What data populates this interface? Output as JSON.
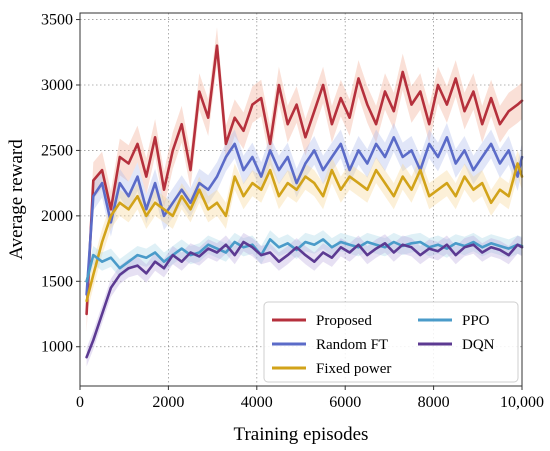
{
  "chart_data": {
    "type": "line",
    "title": "",
    "xlabel": "Training episodes",
    "ylabel": "Average reward",
    "xlim": [
      0,
      10000
    ],
    "ylim": [
      700,
      3550
    ],
    "xticks": [
      0,
      2000,
      4000,
      6000,
      8000,
      10000
    ],
    "xtick_labels": [
      "0",
      "2000",
      "4000",
      "6000",
      "8000",
      "10,000"
    ],
    "yticks": [
      1000,
      1500,
      2000,
      2500,
      3000,
      3500
    ],
    "ytick_labels": [
      "1000",
      "1500",
      "2000",
      "2500",
      "3000",
      "3500"
    ],
    "grid": true,
    "legend_position": "bottom-right",
    "legend_columns": 2,
    "band_note": "shaded confidence band around each series",
    "series": [
      {
        "name": "Proposed",
        "color": "#b5303c",
        "band_color": "#f0a78d",
        "x": [
          150,
          300,
          500,
          700,
          900,
          1100,
          1300,
          1500,
          1700,
          1900,
          2100,
          2300,
          2500,
          2700,
          2900,
          3100,
          3300,
          3500,
          3700,
          3900,
          4100,
          4300,
          4500,
          4700,
          4900,
          5100,
          5300,
          5500,
          5700,
          5900,
          6100,
          6300,
          6500,
          6700,
          6900,
          7100,
          7300,
          7500,
          7700,
          7900,
          8100,
          8300,
          8500,
          8700,
          8900,
          9100,
          9300,
          9500,
          9700,
          9900,
          10000
        ],
        "y": [
          1250,
          2270,
          2350,
          2050,
          2450,
          2400,
          2550,
          2300,
          2600,
          2200,
          2500,
          2700,
          2350,
          2950,
          2750,
          3300,
          2550,
          2750,
          2650,
          2850,
          2900,
          2550,
          3000,
          2700,
          2850,
          2600,
          2800,
          3000,
          2700,
          2900,
          2750,
          3050,
          2850,
          2700,
          2950,
          2800,
          3100,
          2850,
          2950,
          2700,
          3000,
          2850,
          3050,
          2800,
          2950,
          2700,
          2900,
          2700,
          2800,
          2850,
          2880
        ],
        "band_halfwidth": 140
      },
      {
        "name": "Random FT",
        "color": "#5b6bc8",
        "band_color": "#a9b6ec",
        "x": [
          150,
          300,
          500,
          700,
          900,
          1100,
          1300,
          1500,
          1700,
          1900,
          2100,
          2300,
          2500,
          2700,
          2900,
          3100,
          3300,
          3500,
          3700,
          3900,
          4100,
          4300,
          4500,
          4700,
          4900,
          5100,
          5300,
          5500,
          5700,
          5900,
          6100,
          6300,
          6500,
          6700,
          6900,
          7100,
          7300,
          7500,
          7700,
          7900,
          8100,
          8300,
          8500,
          8700,
          8900,
          9100,
          9300,
          9500,
          9700,
          9900,
          10000
        ],
        "y": [
          1400,
          2150,
          2250,
          1950,
          2250,
          2150,
          2300,
          2050,
          2250,
          2000,
          2100,
          2200,
          2100,
          2250,
          2200,
          2300,
          2450,
          2550,
          2350,
          2450,
          2300,
          2500,
          2350,
          2450,
          2250,
          2400,
          2500,
          2350,
          2450,
          2550,
          2350,
          2500,
          2400,
          2550,
          2450,
          2600,
          2450,
          2500,
          2350,
          2550,
          2450,
          2600,
          2400,
          2500,
          2350,
          2450,
          2550,
          2400,
          2500,
          2300,
          2450
        ],
        "band_halfwidth": 110
      },
      {
        "name": "Fixed power",
        "color": "#d2a319",
        "band_color": "#f5d38e",
        "x": [
          150,
          300,
          500,
          700,
          900,
          1100,
          1300,
          1500,
          1700,
          1900,
          2100,
          2300,
          2500,
          2700,
          2900,
          3100,
          3300,
          3500,
          3700,
          3900,
          4100,
          4300,
          4500,
          4700,
          4900,
          5100,
          5300,
          5500,
          5700,
          5900,
          6100,
          6300,
          6500,
          6700,
          6900,
          7100,
          7300,
          7500,
          7700,
          7900,
          8100,
          8300,
          8500,
          8700,
          8900,
          9100,
          9300,
          9500,
          9700,
          9900,
          10000
        ],
        "y": [
          1350,
          1550,
          1800,
          2000,
          2100,
          2050,
          2150,
          2000,
          2100,
          2050,
          2000,
          2150,
          2050,
          2200,
          2050,
          2100,
          2000,
          2300,
          2150,
          2250,
          2200,
          2350,
          2150,
          2250,
          2200,
          2300,
          2250,
          2150,
          2350,
          2200,
          2300,
          2250,
          2200,
          2350,
          2250,
          2150,
          2300,
          2200,
          2350,
          2150,
          2200,
          2250,
          2150,
          2300,
          2200,
          2250,
          2100,
          2200,
          2150,
          2400,
          2300
        ],
        "band_halfwidth": 100
      },
      {
        "name": "PPO",
        "color": "#4a9bc9",
        "band_color": "#a3d3e6",
        "x": [
          150,
          300,
          500,
          700,
          900,
          1100,
          1300,
          1500,
          1700,
          1900,
          2100,
          2300,
          2500,
          2700,
          2900,
          3100,
          3300,
          3500,
          3700,
          3900,
          4100,
          4300,
          4500,
          4700,
          4900,
          5100,
          5300,
          5500,
          5700,
          5900,
          6100,
          6300,
          6500,
          6700,
          6900,
          7100,
          7300,
          7500,
          7700,
          7900,
          8100,
          8300,
          8500,
          8700,
          8900,
          9100,
          9300,
          9500,
          9700,
          9900,
          10000
        ],
        "y": [
          1500,
          1700,
          1650,
          1680,
          1600,
          1650,
          1700,
          1680,
          1720,
          1650,
          1700,
          1750,
          1700,
          1720,
          1780,
          1750,
          1720,
          1800,
          1760,
          1780,
          1700,
          1820,
          1760,
          1790,
          1740,
          1800,
          1780,
          1820,
          1760,
          1800,
          1780,
          1760,
          1800,
          1780,
          1760,
          1800,
          1770,
          1790,
          1800,
          1760,
          1780,
          1750,
          1790,
          1770,
          1800,
          1760,
          1790,
          1770,
          1750,
          1780,
          1770
        ],
        "band_halfwidth": 70
      },
      {
        "name": "DQN",
        "color": "#5c3a92",
        "band_color": "#b8a6dc",
        "x": [
          150,
          300,
          500,
          700,
          900,
          1100,
          1300,
          1500,
          1700,
          1900,
          2100,
          2300,
          2500,
          2700,
          2900,
          3100,
          3300,
          3500,
          3700,
          3900,
          4100,
          4300,
          4500,
          4700,
          4900,
          5100,
          5300,
          5500,
          5700,
          5900,
          6100,
          6300,
          6500,
          6700,
          6900,
          7100,
          7300,
          7500,
          7700,
          7900,
          8100,
          8300,
          8500,
          8700,
          8900,
          9100,
          9300,
          9500,
          9700,
          9900,
          10000
        ],
        "y": [
          920,
          1050,
          1250,
          1450,
          1550,
          1600,
          1620,
          1560,
          1650,
          1600,
          1700,
          1650,
          1720,
          1690,
          1750,
          1720,
          1780,
          1700,
          1800,
          1760,
          1700,
          1720,
          1650,
          1700,
          1760,
          1700,
          1650,
          1720,
          1680,
          1760,
          1720,
          1780,
          1700,
          1750,
          1790,
          1720,
          1780,
          1760,
          1700,
          1750,
          1730,
          1780,
          1700,
          1760,
          1780,
          1720,
          1760,
          1740,
          1700,
          1780,
          1760
        ],
        "band_halfwidth": 70
      }
    ]
  }
}
